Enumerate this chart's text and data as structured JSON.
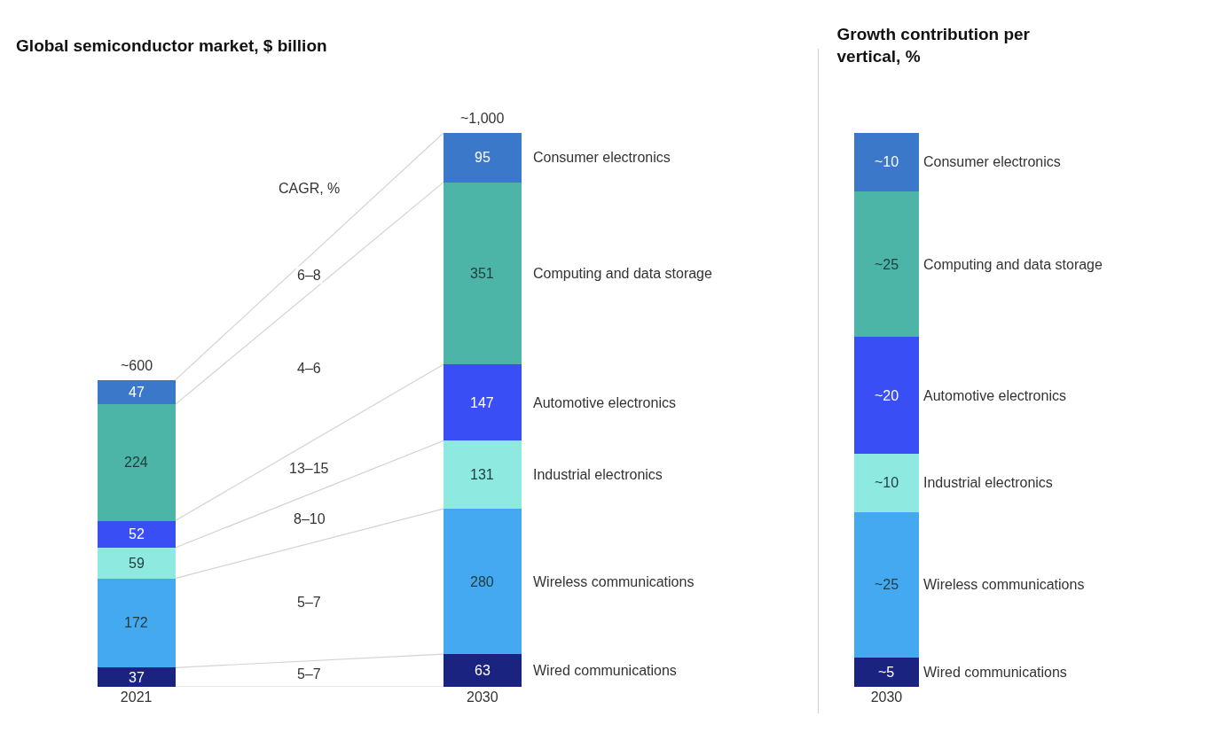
{
  "chart_data": [
    {
      "type": "bar",
      "title": "Global semiconductor market, $ billion",
      "stacked": true,
      "tick_labels": "x",
      "data_labels": true,
      "categories": [
        "2021",
        "2030"
      ],
      "annotations": [
        {
          "text": "~600",
          "x": "2021",
          "y": 591
        },
        {
          "text": "~1,000",
          "x": "2030",
          "y": 1067
        },
        "CAGR, %",
        "6–8",
        "4–6",
        "13–15",
        "8–10",
        "5–7",
        "5–7"
      ],
      "series": [
        {
          "name": "Wired communications",
          "color": "#1b2380",
          "values": [
            37,
            63
          ]
        },
        {
          "name": "Wireless communications",
          "color": "#45a9f2",
          "values": [
            172,
            280
          ]
        },
        {
          "name": "Industrial electronics",
          "color": "#8ee9e0",
          "values": [
            59,
            131
          ]
        },
        {
          "name": "Automotive electronics",
          "color": "#3a4ef5",
          "values": [
            52,
            147
          ]
        },
        {
          "name": "Computing and data storage",
          "color": "#4cb5a8",
          "values": [
            224,
            351
          ]
        },
        {
          "name": "Consumer electronics",
          "color": "#3b78c9",
          "values": [
            47,
            95
          ]
        }
      ]
    },
    {
      "type": "bar",
      "title": "Growth contribution per vertical, %",
      "stacked": true,
      "tick_labels": "x",
      "categories": [
        "2030"
      ],
      "series": [
        {
          "name": "Wired communications",
          "color": "#1b2380",
          "values": [
            5
          ],
          "value_labels": [
            "~5"
          ]
        },
        {
          "name": "Wireless communications",
          "color": "#45a9f2",
          "values": [
            25
          ],
          "value_labels": [
            "~25"
          ]
        },
        {
          "name": "Industrial electronics",
          "color": "#8ee9e0",
          "values": [
            10
          ],
          "value_labels": [
            "~10"
          ]
        },
        {
          "name": "Automotive electronics",
          "color": "#3a4ef5",
          "values": [
            20
          ],
          "value_labels": [
            "~20"
          ]
        },
        {
          "name": "Computing and data storage",
          "color": "#4cb5a8",
          "values": [
            25
          ],
          "value_labels": [
            "~25"
          ]
        },
        {
          "name": "Consumer electronics",
          "color": "#3b78c9",
          "values": [
            10
          ],
          "value_labels": [
            "~10"
          ]
        }
      ]
    }
  ]
}
